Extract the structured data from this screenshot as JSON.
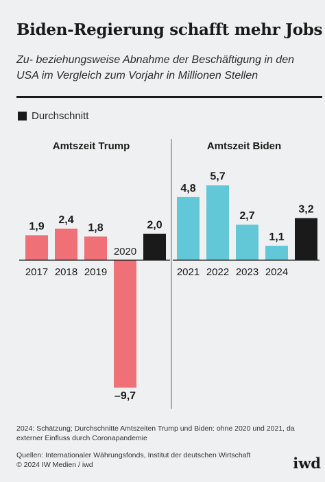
{
  "title": "Biden-Regierung schafft mehr Jobs",
  "subtitle": "Zu- beziehungsweise Abnahme der Beschäftigung in den USA im Vergleich zum Vorjahr in Millionen Stellen",
  "legend": {
    "label": "Durchschnitt"
  },
  "colors": {
    "trump": "#f07078",
    "biden": "#62c8d8",
    "average": "#1a1a1a"
  },
  "chart_data": {
    "type": "bar",
    "panels": [
      {
        "title": "Amtszeit Trump",
        "categories": [
          "2017",
          "2018",
          "2019",
          "2020",
          ""
        ],
        "values": [
          1.9,
          2.4,
          1.8,
          -9.7,
          2.0
        ],
        "value_labels": [
          "1,9",
          "2,4",
          "1,8",
          "–9,7",
          "2,0"
        ],
        "is_average": [
          false,
          false,
          false,
          false,
          true
        ]
      },
      {
        "title": "Amtszeit Biden",
        "categories": [
          "2021",
          "2022",
          "2023",
          "2024",
          ""
        ],
        "values": [
          4.8,
          5.7,
          2.7,
          1.1,
          3.2
        ],
        "value_labels": [
          "4,8",
          "5,7",
          "2,7",
          "1,1",
          "3,2"
        ],
        "is_average": [
          false,
          false,
          false,
          false,
          true
        ]
      }
    ],
    "legend": [
      "Durchschnitt"
    ],
    "grid": false
  },
  "footnote": "2024: Schätzung; Durchschnitte Amtszeiten Trump und Biden: ohne 2020 und 2021, da externer Einfluss durch Coronapandemie",
  "sources": "Quellen: Internationaler Währungsfonds, Institut der deutschen Wirtschaft",
  "copyright": "© 2024 IW Medien / iwd",
  "logo": "iwd"
}
